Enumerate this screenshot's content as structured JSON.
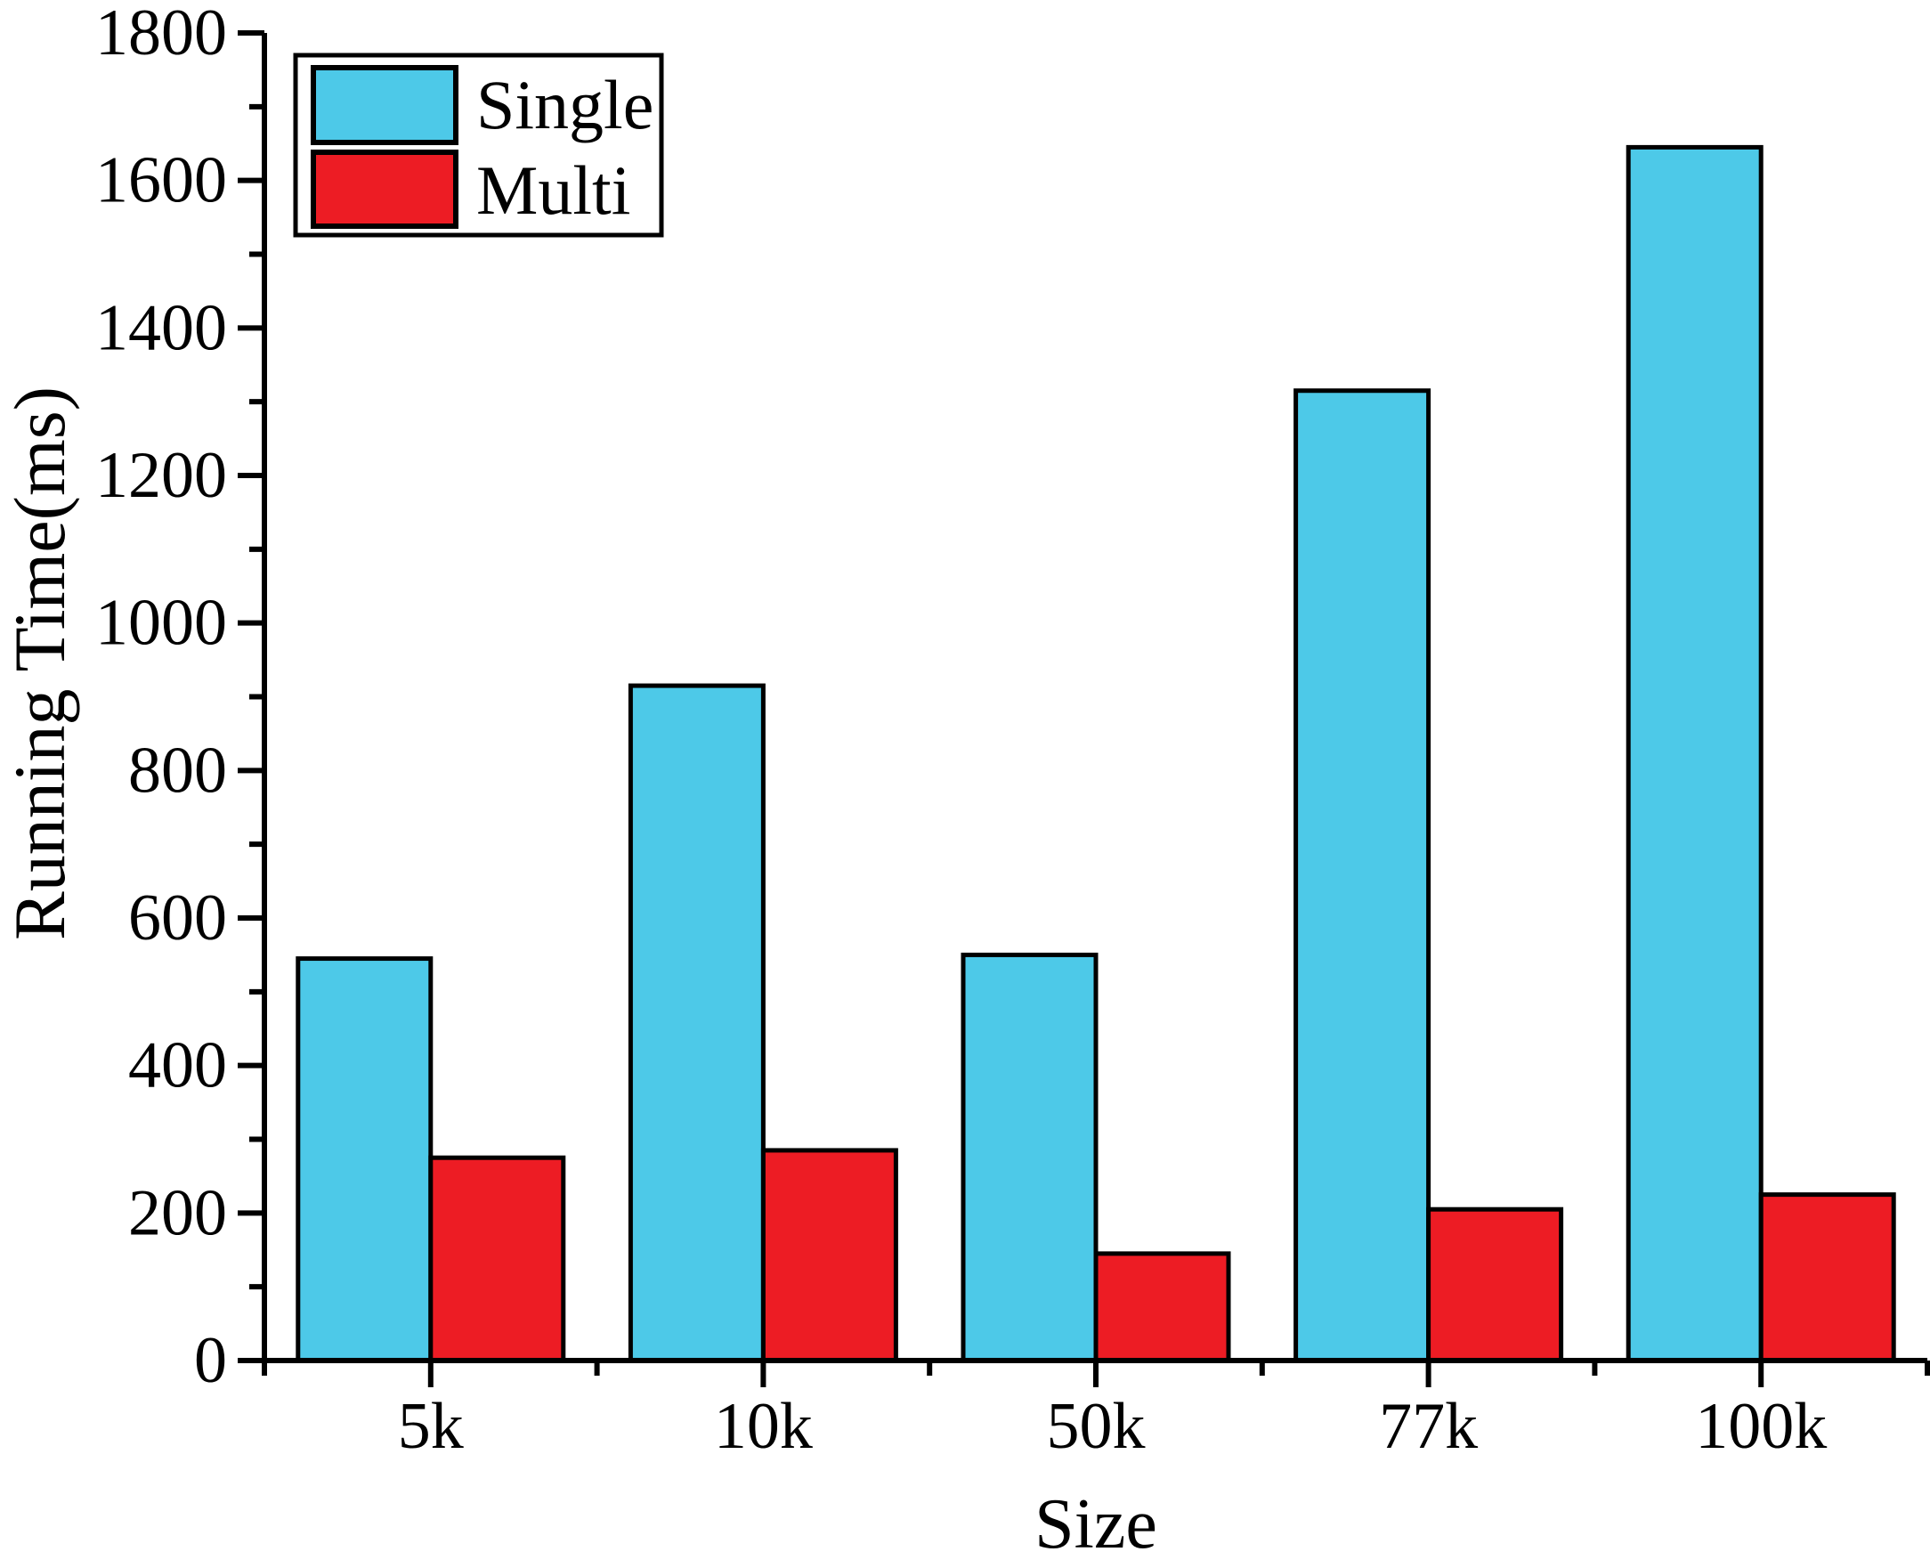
{
  "chart_data": {
    "type": "bar",
    "title": "",
    "xlabel": "Size",
    "ylabel": "Running Time(ms)",
    "categories": [
      "5k",
      "10k",
      "50k",
      "77k",
      "100k"
    ],
    "series": [
      {
        "name": "Single",
        "color": "#4DC9E8",
        "values": [
          545,
          915,
          550,
          1315,
          1645
        ]
      },
      {
        "name": "Multi",
        "color": "#ED1C24",
        "values": [
          275,
          285,
          145,
          205,
          225
        ]
      }
    ],
    "ylim": [
      0,
      1800
    ],
    "y_major_step": 200,
    "y_minor_step": 100,
    "y_tick_labels": [
      "0",
      "200",
      "400",
      "600",
      "800",
      "1000",
      "1200",
      "1400",
      "1600",
      "1800"
    ],
    "grid": false,
    "legend_position": "top-left",
    "bar_outline_color": "#000000",
    "axis_color": "#000000",
    "background_color": "#FFFFFF"
  }
}
